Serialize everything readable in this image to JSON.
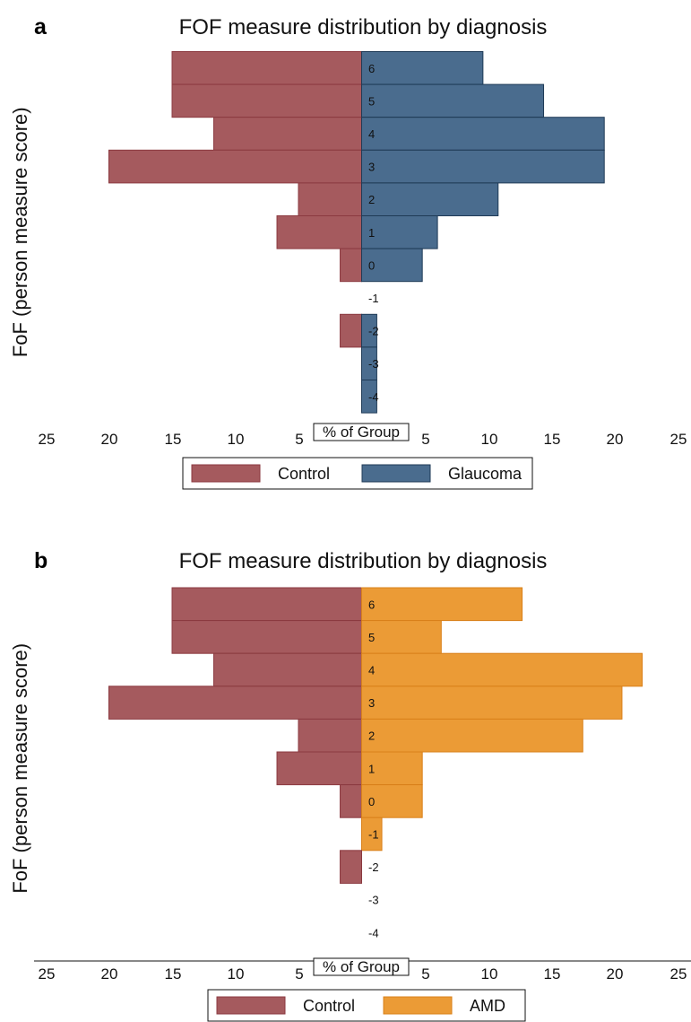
{
  "chart_data": [
    {
      "type": "bar",
      "orientation": "horizontal-pyramid",
      "panel_label": "a",
      "title": "FOF measure distribution by diagnosis",
      "ylabel": "FoF (person measure score)",
      "xlabel": "% of Group",
      "xlim": [
        -25,
        25
      ],
      "x_tick_labels": [
        "25",
        "20",
        "15",
        "10",
        "5",
        "5",
        "10",
        "15",
        "20",
        "25"
      ],
      "categories": [
        "6",
        "5",
        "4",
        "3",
        "2",
        "1",
        "0",
        "-1",
        "-2",
        "-3",
        "-4"
      ],
      "series": [
        {
          "name": "Control",
          "side": "left",
          "color": "#A55A5E",
          "edge": "#8B3A40",
          "values": [
            15,
            15,
            11.7,
            20,
            5,
            6.7,
            1.7,
            0,
            1.7,
            0,
            0
          ]
        },
        {
          "name": "Glaucoma",
          "side": "right",
          "color": "#4A6C8E",
          "edge": "#1F3A56",
          "values": [
            9.6,
            14.4,
            19.2,
            19.2,
            10.8,
            6,
            4.8,
            0,
            1.2,
            1.2,
            1.2
          ]
        }
      ],
      "legend": "bottom"
    },
    {
      "type": "bar",
      "orientation": "horizontal-pyramid",
      "panel_label": "b",
      "title": "FOF measure distribution by diagnosis",
      "ylabel": "FoF (person measure score)",
      "xlabel": "% of Group",
      "xlim": [
        -25,
        25
      ],
      "x_tick_labels": [
        "25",
        "20",
        "15",
        "10",
        "5",
        "5",
        "10",
        "15",
        "20",
        "25"
      ],
      "categories": [
        "6",
        "5",
        "4",
        "3",
        "2",
        "1",
        "0",
        "-1",
        "-2",
        "-3",
        "-4"
      ],
      "series": [
        {
          "name": "Control",
          "side": "left",
          "color": "#A55A5E",
          "edge": "#8B3A40",
          "values": [
            15,
            15,
            11.7,
            20,
            5,
            6.7,
            1.7,
            0,
            1.7,
            0,
            0
          ]
        },
        {
          "name": "AMD",
          "side": "right",
          "color": "#EB9B36",
          "edge": "#D9801A",
          "values": [
            12.7,
            6.3,
            22.2,
            20.6,
            17.5,
            4.8,
            4.8,
            1.6,
            0,
            0,
            0
          ]
        }
      ],
      "legend": "bottom"
    }
  ]
}
